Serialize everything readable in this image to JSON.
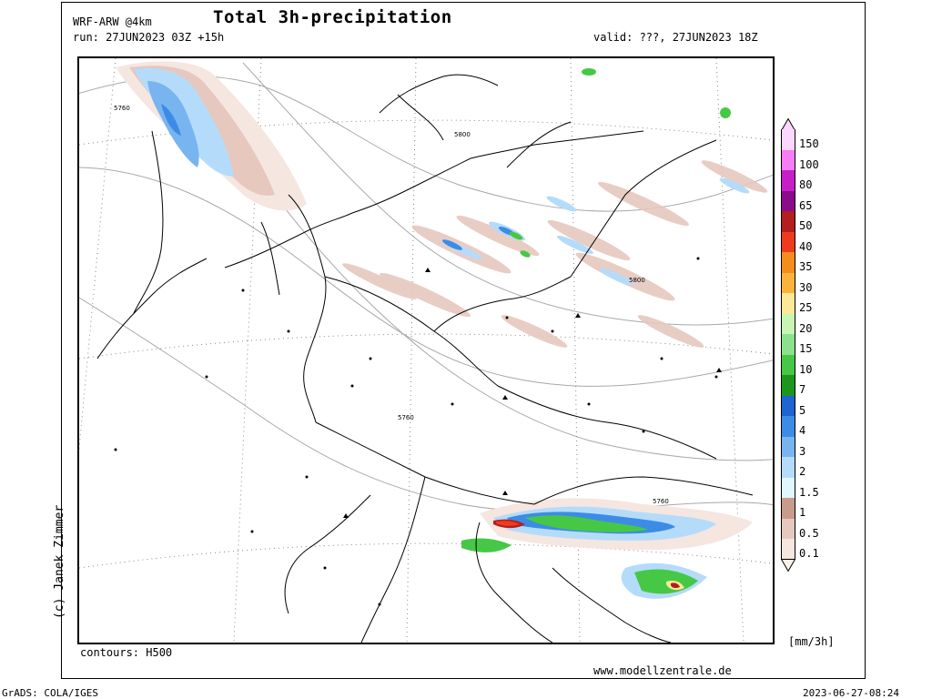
{
  "header": {
    "model": "WRF-ARW @4km",
    "title": "Total 3h-precipitation",
    "run": "run: 27JUN2023 03Z +15h",
    "valid": "valid: ???, 27JUN2023 18Z"
  },
  "credit": "(c) Janek Zimmer",
  "contours_label": "contours: H500",
  "website": "www.modellzentrale.de",
  "unit": "[mm/3h]",
  "footer": {
    "grads": "GrADS: COLA/IGES",
    "timestamp": "2023-06-27-08:24"
  },
  "contour_labels": [
    "5760",
    "5800",
    "5800",
    "5760",
    "5760"
  ],
  "legend": [
    {
      "label": "150",
      "color": "#fdd6fd"
    },
    {
      "label": "100",
      "color": "#f57df5"
    },
    {
      "label": "80",
      "color": "#c81ec8"
    },
    {
      "label": "65",
      "color": "#8c0a8c"
    },
    {
      "label": "50",
      "color": "#b41e1e"
    },
    {
      "label": "40",
      "color": "#ee3b1e"
    },
    {
      "label": "35",
      "color": "#f58c1e"
    },
    {
      "label": "30",
      "color": "#fab43c"
    },
    {
      "label": "25",
      "color": "#fce896"
    },
    {
      "label": "20",
      "color": "#c8f5b4"
    },
    {
      "label": "15",
      "color": "#8ce28c"
    },
    {
      "label": "10",
      "color": "#46c846"
    },
    {
      "label": "7",
      "color": "#1e961e"
    },
    {
      "label": "5",
      "color": "#1e64d2"
    },
    {
      "label": "4",
      "color": "#3c8ce6"
    },
    {
      "label": "3",
      "color": "#78b4f0"
    },
    {
      "label": "2",
      "color": "#b4dcfa"
    },
    {
      "label": "1.5",
      "color": "#e0f8fc"
    },
    {
      "label": "1",
      "color": "#c89b8c"
    },
    {
      "label": "0.5",
      "color": "#e6c8be"
    },
    {
      "label": "0.1",
      "color": "#f5e6e0"
    }
  ],
  "legend_bottom_color": "#fcf0e8"
}
